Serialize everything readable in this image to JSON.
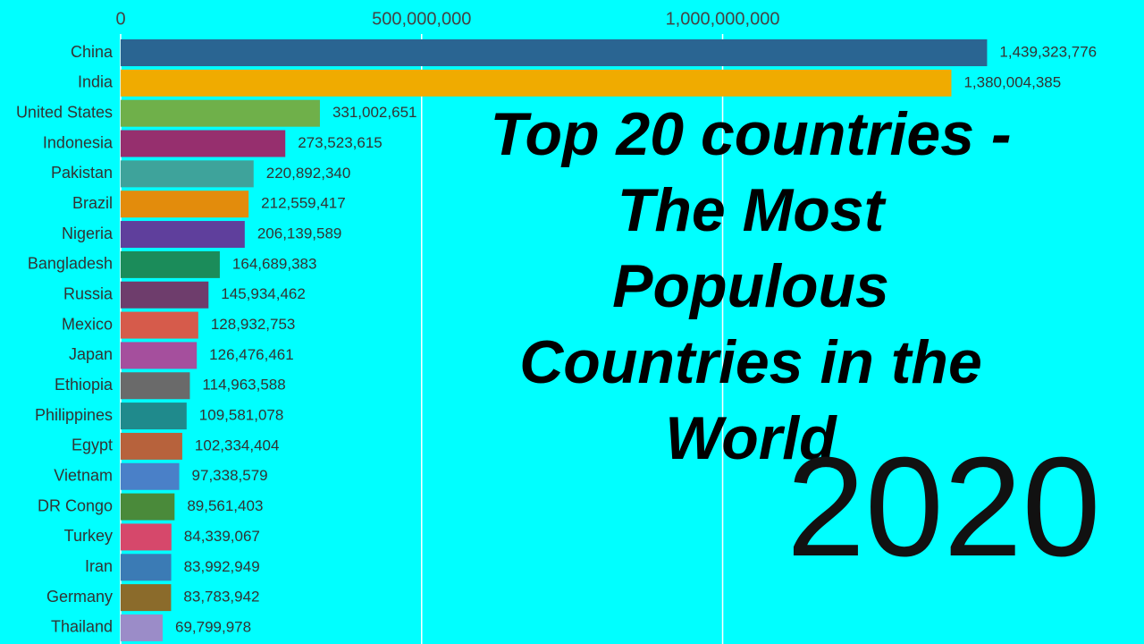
{
  "chart_data": {
    "type": "bar",
    "orientation": "horizontal",
    "title": [
      "Top 20 countries -",
      "The Most",
      "Populous",
      "Countries in the",
      "World"
    ],
    "year_label": "2020",
    "categories": [
      "China",
      "India",
      "United States",
      "Indonesia",
      "Pakistan",
      "Brazil",
      "Nigeria",
      "Bangladesh",
      "Russia",
      "Mexico",
      "Japan",
      "Ethiopia",
      "Philippines",
      "Egypt",
      "Vietnam",
      "DR Congo",
      "Turkey",
      "Iran",
      "Germany",
      "Thailand"
    ],
    "values": [
      1439323776,
      1380004385,
      331002651,
      273523615,
      220892340,
      212559417,
      206139589,
      164689383,
      145934462,
      128932753,
      126476461,
      114963588,
      109581078,
      102334404,
      97338579,
      89561403,
      84339067,
      83992949,
      83783942,
      69799978
    ],
    "value_labels": [
      "1,439,323,776",
      "1,380,004,385",
      "331,002,651",
      "273,523,615",
      "220,892,340",
      "212,559,417",
      "206,139,589",
      "164,689,383",
      "145,934,462",
      "128,932,753",
      "126,476,461",
      "114,963,588",
      "109,581,078",
      "102,334,404",
      "97,338,579",
      "89,561,403",
      "84,339,067",
      "83,992,949",
      "83,783,942",
      "69,799,978"
    ],
    "colors": [
      "#2a6592",
      "#f0ab00",
      "#6fb04a",
      "#962f6e",
      "#3ea39b",
      "#e38c0c",
      "#5f3f9c",
      "#1b8c5a",
      "#6e3d6c",
      "#d65b4b",
      "#a54f9d",
      "#6a6a6a",
      "#1f8a8c",
      "#b7623c",
      "#4a80c8",
      "#4a8a3a",
      "#d6486b",
      "#3b7bb5",
      "#8b6b2b",
      "#9b8cc8"
    ],
    "xlim": [
      0,
      1700000000
    ],
    "xticks": [
      0,
      {
        "value": 500000000,
        "label": "500,000,000"
      },
      {
        "value": 1000000000,
        "label": "1,000,000,000"
      }
    ],
    "grid": true
  }
}
